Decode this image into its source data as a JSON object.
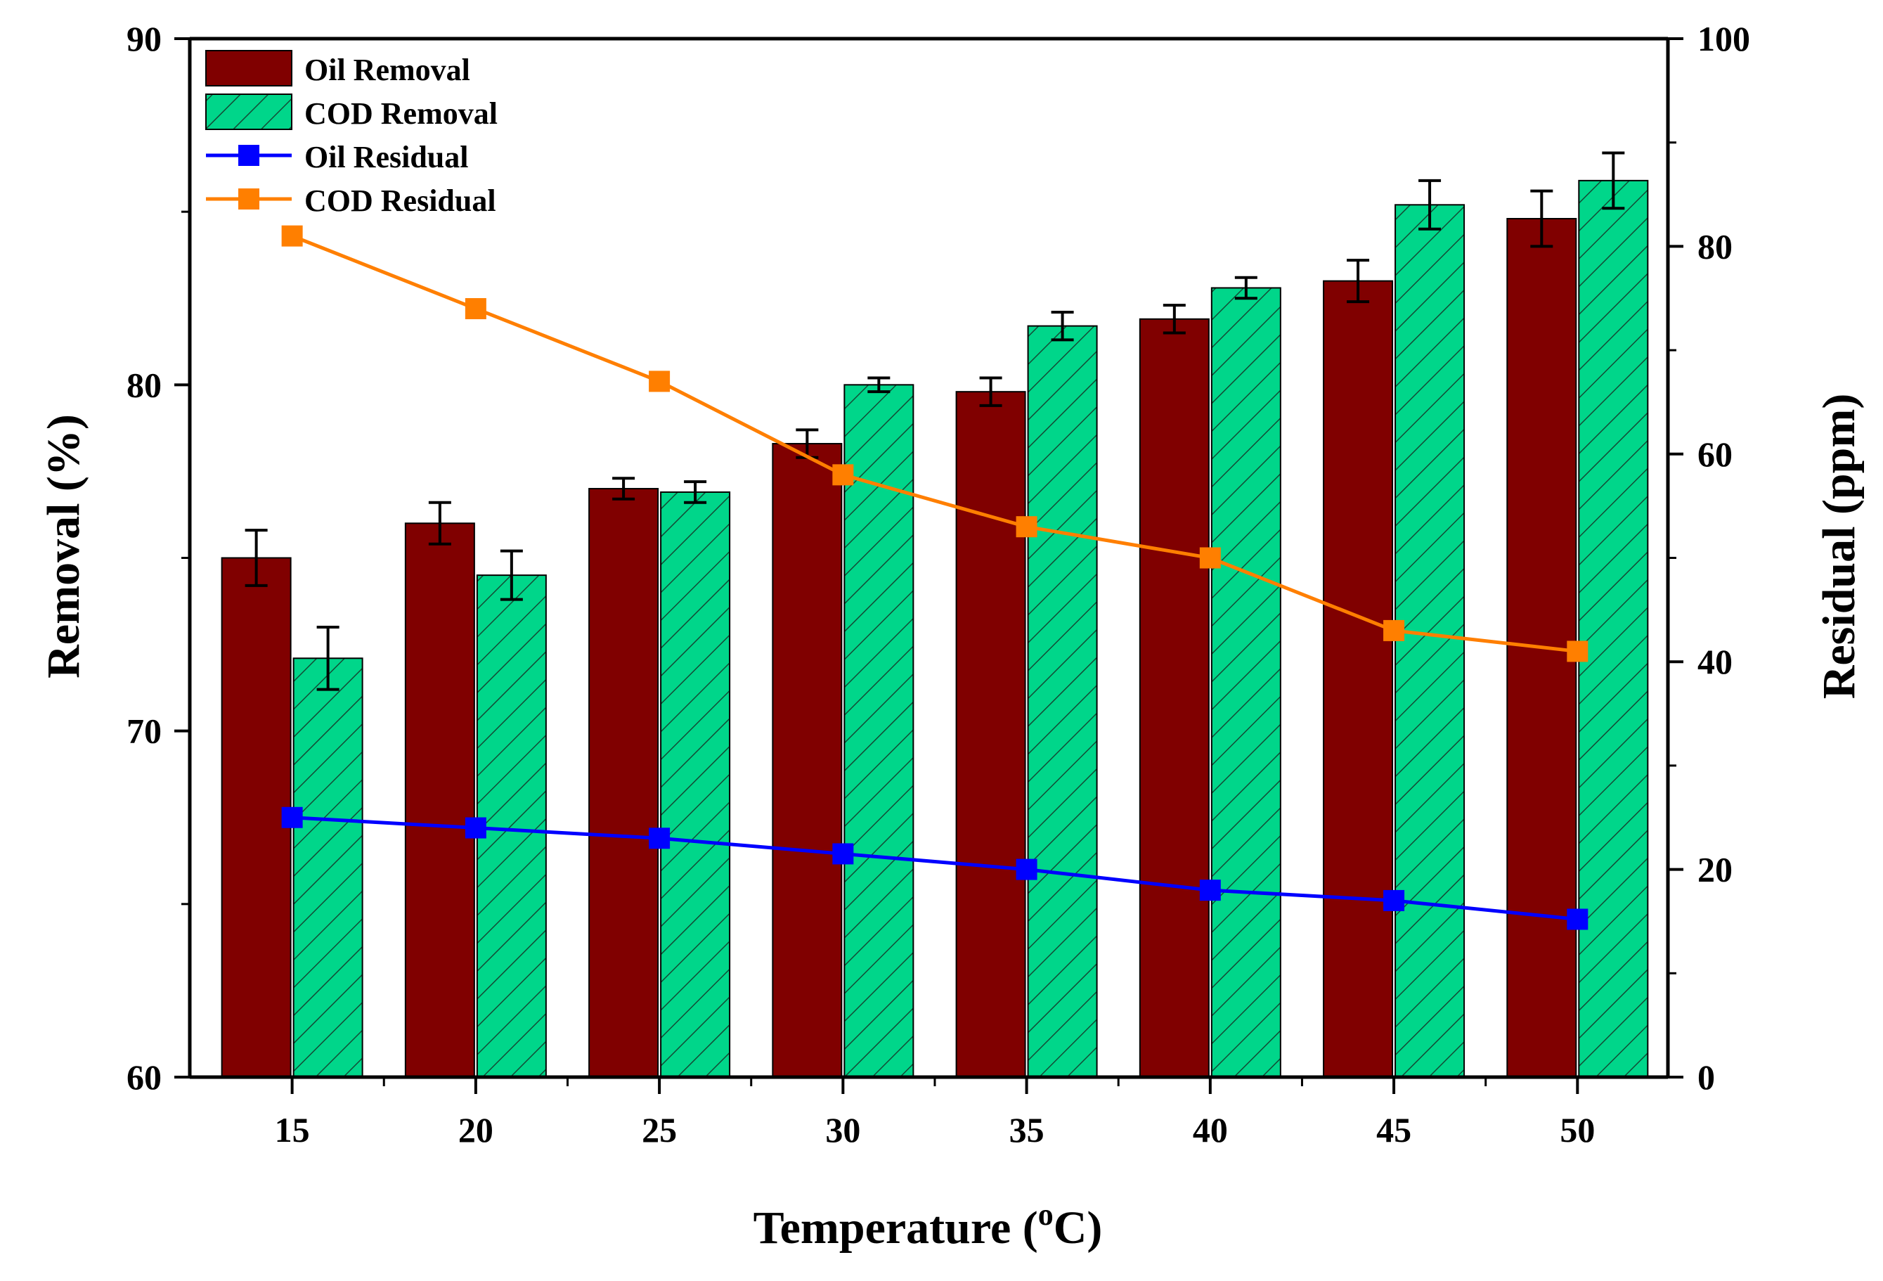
{
  "chart_data": {
    "type": "bar",
    "title": "",
    "xlabel": "Temperature (oC)",
    "xlabel_parts": [
      "Temperature (",
      "o",
      "C)"
    ],
    "ylabel": "Removal (%)",
    "y2label": "Residual (ppm)",
    "categories": [
      "15",
      "20",
      "25",
      "30",
      "35",
      "40",
      "45",
      "50"
    ],
    "ylim": [
      60,
      90
    ],
    "y2lim": [
      0,
      100
    ],
    "yticks": [
      "60",
      "70",
      "80",
      "90"
    ],
    "y2ticks": [
      "0",
      "20",
      "40",
      "60",
      "80",
      "100"
    ],
    "bar_series": [
      {
        "name": "Oil Removal",
        "axis": "left",
        "color": "#800000",
        "pattern": "solid",
        "values": [
          75.0,
          76.0,
          77.0,
          78.3,
          79.8,
          81.9,
          83.0,
          84.8
        ],
        "errors": [
          0.8,
          0.6,
          0.3,
          0.4,
          0.4,
          0.4,
          0.6,
          0.8
        ]
      },
      {
        "name": "COD Removal",
        "axis": "left",
        "color": "#00D68A",
        "pattern": "hatched",
        "values": [
          72.1,
          74.5,
          76.9,
          80.0,
          81.7,
          82.8,
          85.2,
          85.9
        ],
        "errors": [
          0.9,
          0.7,
          0.3,
          0.2,
          0.4,
          0.3,
          0.7,
          0.8
        ]
      }
    ],
    "line_series": [
      {
        "name": "Oil Residual",
        "axis": "right",
        "color": "#0000FF",
        "marker": "square",
        "values": [
          25,
          24,
          23,
          21.5,
          20,
          18,
          17,
          15.2
        ]
      },
      {
        "name": "COD Residual",
        "axis": "right",
        "color": "#FF7F00",
        "marker": "square",
        "values": [
          81,
          74,
          67,
          58,
          53,
          50,
          43,
          41
        ]
      }
    ],
    "legend": {
      "position": "top-left",
      "entries": [
        "Oil Removal",
        "COD Removal",
        "Oil Residual",
        "COD Residual"
      ]
    },
    "grid": false
  }
}
